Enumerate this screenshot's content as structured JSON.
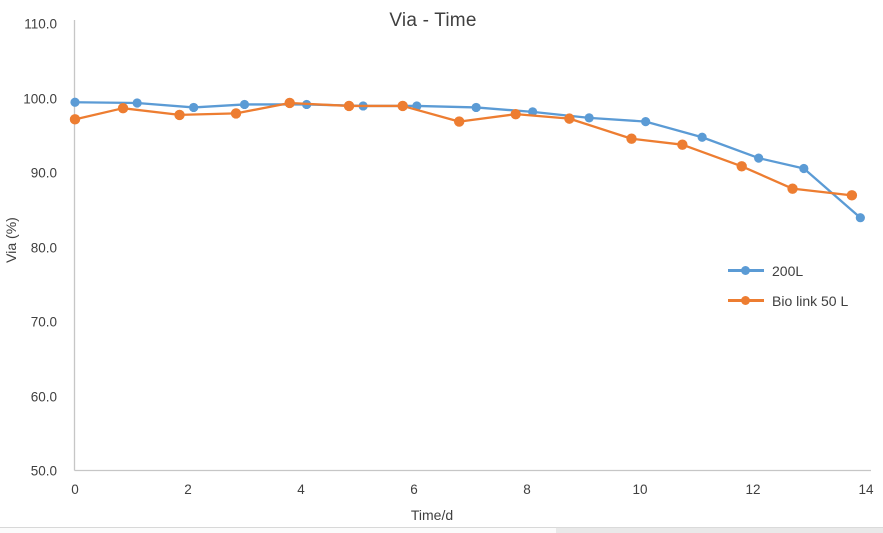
{
  "chart_data": {
    "type": "line",
    "title": "Via - Time",
    "xlabel": "Time/d",
    "ylabel": "Via (%)",
    "xlim": [
      0,
      14
    ],
    "ylim": [
      50,
      110
    ],
    "grid": false,
    "legend_position": "center-right",
    "x_tick_labels": [
      "0",
      "2",
      "4",
      "6",
      "8",
      "10",
      "12",
      "14"
    ],
    "x_tick_values": [
      0,
      2,
      4,
      6,
      8,
      10,
      12,
      14
    ],
    "y_tick_labels": [
      "110.0",
      "100.0",
      "90.0",
      "80.0",
      "70.0",
      "60.0",
      "50.0"
    ],
    "y_tick_values": [
      110,
      100,
      90,
      80,
      70,
      60,
      50
    ],
    "series": [
      {
        "name": "200L",
        "color": "#5B9BD5",
        "x": [
          0,
          1.1,
          2.1,
          3.0,
          4.1,
          5.1,
          6.05,
          7.1,
          8.1,
          9.1,
          10.1,
          11.1,
          12.1,
          12.9,
          13.9
        ],
        "y": [
          99.5,
          99.4,
          98.8,
          99.2,
          99.2,
          99.0,
          99.0,
          98.8,
          98.2,
          97.4,
          96.9,
          94.8,
          92.0,
          90.6,
          84.0
        ]
      },
      {
        "name": "Bio link 50 L",
        "color": "#ED7D31",
        "x": [
          0,
          0.85,
          1.85,
          2.85,
          3.8,
          4.85,
          5.8,
          6.8,
          7.8,
          8.75,
          9.85,
          10.75,
          11.8,
          12.7,
          13.75
        ],
        "y": [
          97.2,
          98.7,
          97.8,
          98.0,
          99.4,
          99.0,
          99.0,
          96.9,
          97.9,
          97.3,
          94.6,
          93.8,
          90.9,
          87.9,
          87.0
        ]
      }
    ]
  },
  "colors": {
    "axis_line": "#c6c6c6",
    "title_text": "#3f3f3f",
    "tick_text": "#404040",
    "bottom_edge_left": "#fbfbfb",
    "bottom_edge_right": "#e9e9e9"
  }
}
